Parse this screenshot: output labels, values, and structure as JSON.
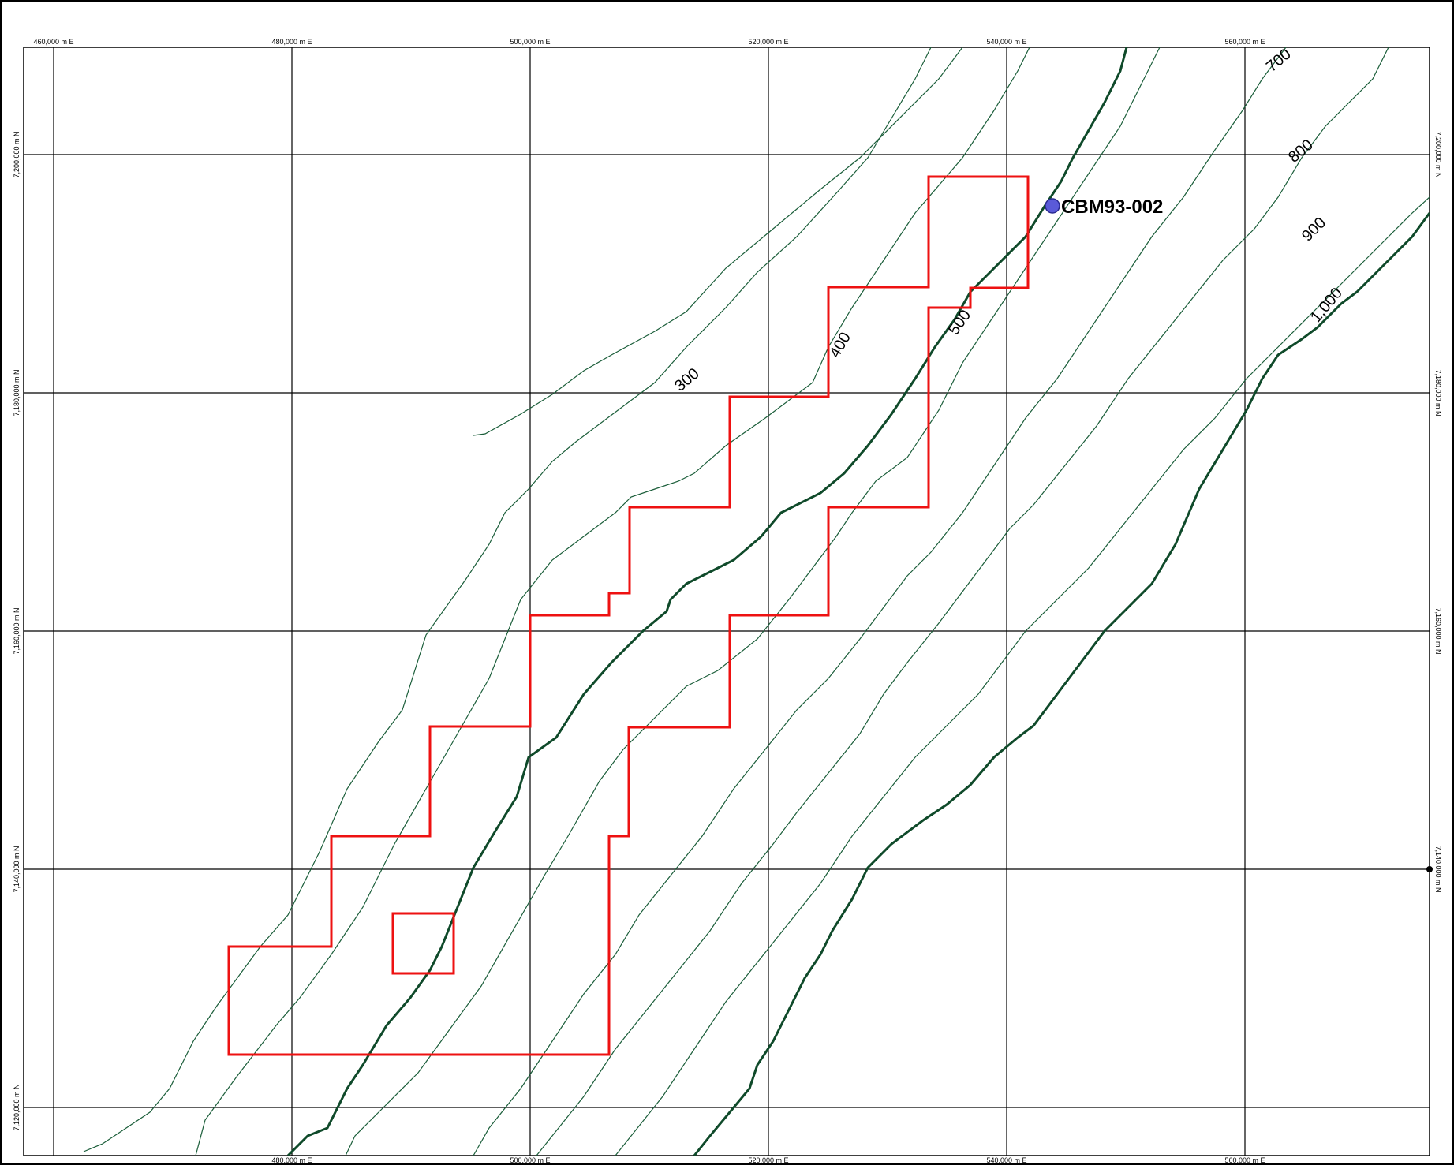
{
  "map": {
    "colors": {
      "frame": "#000000",
      "grid": "#000000",
      "contour": "#1b5e3a",
      "contour_major": "#0f4a2a",
      "tenement": "#ee1111",
      "well": "#5a5ad8"
    },
    "easting_labels_top": [
      "460,000 m E",
      "480,000 m E",
      "500,000 m E",
      "520,000 m E",
      "540,000 m E",
      "560,000 m E"
    ],
    "easting_labels_bottom": [
      "480,000 m E",
      "500,000 m E",
      "520,000 m E",
      "540,000 m E",
      "560,000 m E"
    ],
    "northing_labels_left": [
      "7,200,000 m N",
      "7,180,000 m N",
      "7,160,000 m N",
      "7,140,000 m N",
      "7,120,000 m N"
    ],
    "northing_labels_right": [
      "7,200,000 m N",
      "7,180,000 m N",
      "7,160,000 m N",
      "7,140,000 m N"
    ],
    "contour_labels": [
      "300",
      "400",
      "500",
      "700",
      "800",
      "900",
      "1,000"
    ],
    "well": {
      "label": "CBM93-002",
      "icon": "drill-hole-marker-icon"
    }
  }
}
